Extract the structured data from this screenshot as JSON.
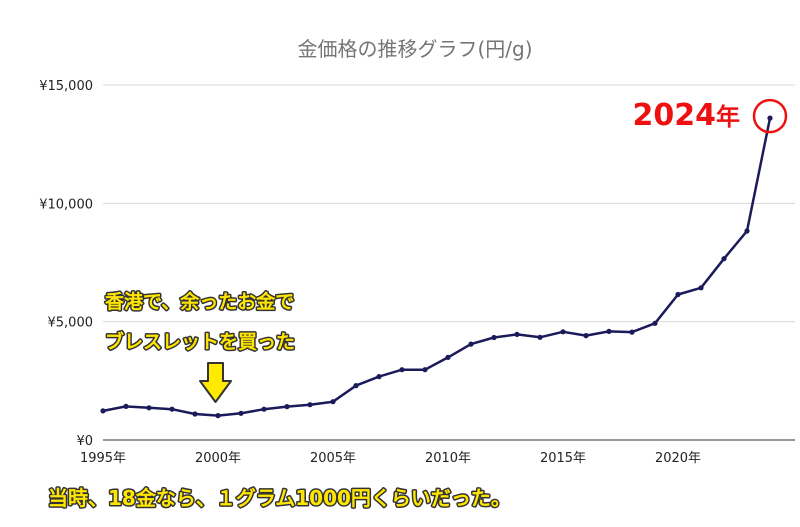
{
  "chart_data": {
    "type": "line",
    "title": "金価格の推移グラフ(円/g)",
    "xlabel": "",
    "ylabel": "",
    "x": [
      1995,
      1996,
      1997,
      1998,
      1999,
      2000,
      2001,
      2002,
      2003,
      2004,
      2005,
      2006,
      2007,
      2008,
      2009,
      2010,
      2011,
      2012,
      2013,
      2014,
      2015,
      2016,
      2017,
      2018,
      2019,
      2020,
      2021,
      2022,
      2023,
      2024
    ],
    "series": [
      {
        "values": [
          1230,
          1420,
          1360,
          1300,
          1100,
          1030,
          1130,
          1300,
          1410,
          1490,
          1620,
          2300,
          2680,
          2970,
          2970,
          3490,
          4050,
          4330,
          4460,
          4340,
          4570,
          4410,
          4590,
          4560,
          4930,
          6150,
          6430,
          7660,
          8830,
          13600
        ]
      }
    ],
    "xlim": [
      1995,
      2024
    ],
    "ylim": [
      0,
      15000
    ],
    "x_ticks": [
      {
        "value": 1995,
        "label": "1995年"
      },
      {
        "value": 2000,
        "label": "2000年"
      },
      {
        "value": 2005,
        "label": "2005年"
      },
      {
        "value": 2010,
        "label": "2010年"
      },
      {
        "value": 2015,
        "label": "2015年"
      },
      {
        "value": 2020,
        "label": "2020年"
      }
    ],
    "y_ticks": [
      {
        "value": 0,
        "label": "¥0"
      },
      {
        "value": 5000,
        "label": "¥5,000"
      },
      {
        "value": 10000,
        "label": "¥10,000"
      },
      {
        "value": 15000,
        "label": "¥15,000"
      }
    ],
    "grid": true,
    "legend": "none",
    "line_color": "#1b1a5a",
    "annotations": {
      "highlight": {
        "x": 2024,
        "label_number": "2024",
        "label_unit": "年",
        "color": "#ee1111"
      },
      "purchase_note": {
        "x": 2000,
        "lines": [
          "香港で、余ったお金で",
          "ブレスレットを買った"
        ],
        "color": "#ffe600"
      },
      "footer_note": "当時、18金なら、１グラム1000円くらいだった。"
    }
  }
}
